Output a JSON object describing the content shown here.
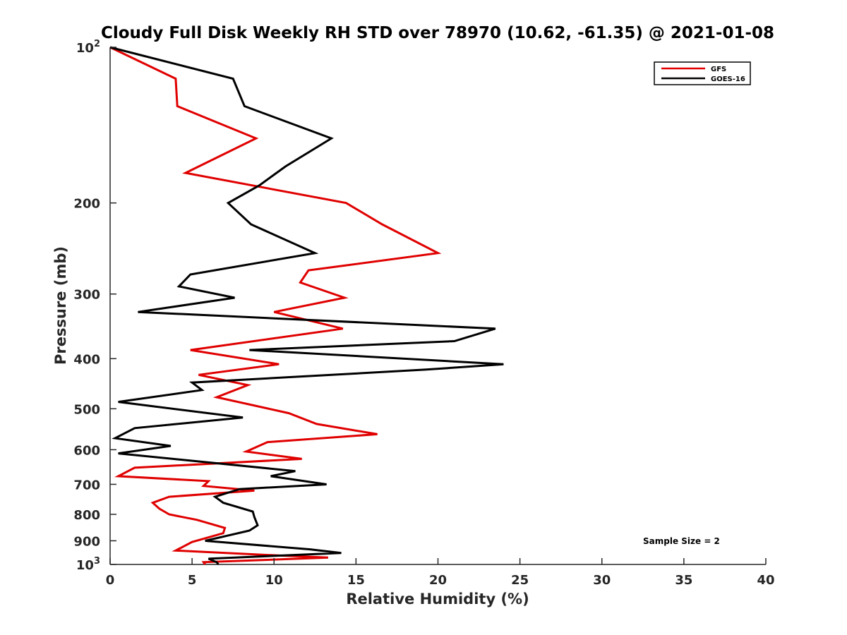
{
  "chart_data": {
    "type": "line",
    "title": "Cloudy Full Disk Weekly RH STD over 78970 (10.62, -61.35) @ 2021-01-08",
    "xlabel": "Relative Humidity (%)",
    "ylabel": "Pressure (mb)",
    "xlim": [
      0,
      40
    ],
    "ylim": [
      100,
      1000
    ],
    "y_scale": "log",
    "y_reversed": true,
    "grid": false,
    "legend_position": "top-right",
    "x_ticks": [
      "0",
      "5",
      "10",
      "15",
      "20",
      "25",
      "30",
      "35",
      "40"
    ],
    "x_tick_values": [
      0,
      5,
      10,
      15,
      20,
      25,
      30,
      35,
      40
    ],
    "y_ticks": [
      {
        "value": 100,
        "base": "10",
        "exp": "2"
      },
      {
        "value": 200,
        "label": "200"
      },
      {
        "value": 300,
        "label": "300"
      },
      {
        "value": 400,
        "label": "400"
      },
      {
        "value": 500,
        "label": "500"
      },
      {
        "value": 600,
        "label": "600"
      },
      {
        "value": 700,
        "label": "700"
      },
      {
        "value": 800,
        "label": "800"
      },
      {
        "value": 900,
        "label": "900"
      },
      {
        "value": 1000,
        "base": "10",
        "exp": "3"
      }
    ],
    "series": [
      {
        "name": "GFS",
        "color": "#e00000",
        "points": [
          [
            0,
            100
          ],
          [
            4,
            115
          ],
          [
            4.1,
            130
          ],
          [
            8.9,
            150
          ],
          [
            4.6,
            175
          ],
          [
            14.4,
            200
          ],
          [
            16.6,
            220
          ],
          [
            20,
            250
          ],
          [
            12.1,
            270
          ],
          [
            11.6,
            285
          ],
          [
            14.3,
            305
          ],
          [
            10,
            325
          ],
          [
            14.2,
            350
          ],
          [
            4.9,
            385
          ],
          [
            10.3,
            410
          ],
          [
            5.4,
            430
          ],
          [
            8.4,
            450
          ],
          [
            6.5,
            475
          ],
          [
            10.9,
            510
          ],
          [
            12.6,
            535
          ],
          [
            16.3,
            560
          ],
          [
            9.6,
            580
          ],
          [
            8.3,
            605
          ],
          [
            11.7,
            625
          ],
          [
            1.5,
            650
          ],
          [
            0.5,
            675
          ],
          [
            6,
            690
          ],
          [
            5.7,
            705
          ],
          [
            8.8,
            720
          ],
          [
            3.6,
            740
          ],
          [
            2.6,
            760
          ],
          [
            3,
            780
          ],
          [
            3.6,
            800
          ],
          [
            5.3,
            820
          ],
          [
            7,
            850
          ],
          [
            6.9,
            870
          ],
          [
            5,
            905
          ],
          [
            4,
            940
          ],
          [
            10,
            960
          ],
          [
            13.3,
            970
          ],
          [
            5.7,
            990
          ],
          [
            5.8,
            1000
          ]
        ]
      },
      {
        "name": "GOES-16",
        "color": "#000000",
        "points": [
          [
            0,
            100
          ],
          [
            7.5,
            115
          ],
          [
            8.2,
            130
          ],
          [
            13.5,
            150
          ],
          [
            10.7,
            170
          ],
          [
            9.1,
            185
          ],
          [
            7.2,
            200
          ],
          [
            8.6,
            220
          ],
          [
            12.5,
            250
          ],
          [
            4.9,
            275
          ],
          [
            4.2,
            290
          ],
          [
            7.6,
            305
          ],
          [
            1.7,
            325
          ],
          [
            23.5,
            350
          ],
          [
            21,
            370
          ],
          [
            8.5,
            385
          ],
          [
            24,
            410
          ],
          [
            19.3,
            420
          ],
          [
            5,
            445
          ],
          [
            5.6,
            460
          ],
          [
            0.5,
            485
          ],
          [
            8.1,
            520
          ],
          [
            1.5,
            545
          ],
          [
            0.3,
            570
          ],
          [
            3.7,
            590
          ],
          [
            0.5,
            610
          ],
          [
            11.3,
            660
          ],
          [
            9.8,
            675
          ],
          [
            13.2,
            700
          ],
          [
            7.9,
            715
          ],
          [
            6.4,
            740
          ],
          [
            6.9,
            760
          ],
          [
            8.7,
            790
          ],
          [
            8.8,
            810
          ],
          [
            9,
            840
          ],
          [
            8.5,
            860
          ],
          [
            5.8,
            900
          ],
          [
            12.2,
            935
          ],
          [
            14.1,
            950
          ],
          [
            6,
            975
          ],
          [
            6.5,
            990
          ],
          [
            6.6,
            1000
          ]
        ]
      }
    ],
    "annotation": "Sample Size = 2"
  }
}
